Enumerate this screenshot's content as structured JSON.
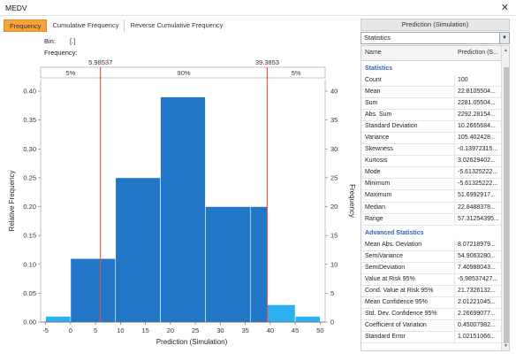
{
  "window": {
    "title": "MEDV",
    "close_icon": "close-icon"
  },
  "tabs": [
    "Frequency",
    "Cumulative Frequency",
    "Reverse Cumulative Frequency"
  ],
  "bin_label": "Bin:",
  "bin_value": "[.]",
  "frequency_label": "Frequency:",
  "markers": {
    "left_value": "5.98537",
    "right_value": "39.3853",
    "band_labels": [
      "5%",
      "90%",
      "5%"
    ],
    "line_color": "#e8402a"
  },
  "chart_data": {
    "type": "bar",
    "title": "",
    "xlabel": "Prediction (Simulation)",
    "ylabel": "Relative Frequency",
    "y2label": "Frequency",
    "xlim": [
      -6,
      51
    ],
    "ylim": [
      0,
      0.42
    ],
    "y2lim": [
      0,
      42
    ],
    "xticks": [
      -5,
      0,
      5,
      10,
      15,
      20,
      25,
      30,
      35,
      40,
      45,
      50
    ],
    "yticks": [
      0.0,
      0.05,
      0.1,
      0.15,
      0.2,
      0.25,
      0.3,
      0.35,
      0.4
    ],
    "ytick_labels": [
      "0.00",
      "0.05",
      "0.10",
      "0.15",
      "0.20",
      "0.25",
      "0.30",
      "0.35",
      "0.40"
    ],
    "y2ticks": [
      0,
      5,
      10,
      15,
      20,
      25,
      30,
      35,
      40
    ],
    "bins": [
      {
        "x0": -5,
        "x1": 0,
        "value": 0.01,
        "color": "#2cb0f0"
      },
      {
        "x0": 0,
        "x1": 5.98537,
        "value": 0.11,
        "color": "#2176c8"
      },
      {
        "x0": 5.98537,
        "x1": 9,
        "value": 0.11,
        "color": "#2176c8"
      },
      {
        "x0": 9,
        "x1": 18,
        "value": 0.25,
        "color": "#2176c8"
      },
      {
        "x0": 18,
        "x1": 27,
        "value": 0.39,
        "color": "#2176c8"
      },
      {
        "x0": 27,
        "x1": 36,
        "value": 0.2,
        "color": "#2176c8"
      },
      {
        "x0": 36,
        "x1": 39.3853,
        "value": 0.2,
        "color": "#2176c8"
      },
      {
        "x0": 39.3853,
        "x1": 45,
        "value": 0.03,
        "color": "#2cb0f0"
      },
      {
        "x0": 45,
        "x1": 50,
        "value": 0.01,
        "color": "#2cb0f0"
      }
    ],
    "marker_lines": [
      5.98537,
      39.3853
    ],
    "grid": false
  },
  "panel": {
    "header": "Prediction (Simulation)",
    "select_value": "Statistics",
    "columns": [
      "Name",
      "Prediction (S..."
    ],
    "rows": [
      {
        "section": "Statistics"
      },
      {
        "name": "Count",
        "value": "100"
      },
      {
        "name": "Mean",
        "value": "22.8105504..."
      },
      {
        "name": "Sum",
        "value": "2281.05504..."
      },
      {
        "name": "Abs. Sum",
        "value": "2292.28154..."
      },
      {
        "name": "Standard Deviation",
        "value": "10.2665684..."
      },
      {
        "name": "Variance",
        "value": "105.402428..."
      },
      {
        "name": "Skewness",
        "value": "-0.13972315..."
      },
      {
        "name": "Kurtosis",
        "value": "3.02629402..."
      },
      {
        "name": "Mode",
        "value": "-5.61325222..."
      },
      {
        "name": "Minimum",
        "value": "-5.61325222..."
      },
      {
        "name": "Maximum",
        "value": "51.6992917..."
      },
      {
        "name": "Median",
        "value": "22.8488378..."
      },
      {
        "name": "Range",
        "value": "57.31254395..."
      },
      {
        "section": "Advanced Statistics"
      },
      {
        "name": "Mean Abs. Deviation",
        "value": "8.07218979..."
      },
      {
        "name": "SemiVariance",
        "value": "54.9063280..."
      },
      {
        "name": "SemiDeviation",
        "value": "7.40988043..."
      },
      {
        "name": "Value at Risk 95%",
        "value": "-5.98537427..."
      },
      {
        "name": "Cond. Value at Risk 95%",
        "value": "21.7326132..."
      },
      {
        "name": "Mean Confidence 95%",
        "value": "2.01221045..."
      },
      {
        "name": "Std. Dev. Confidence 95%",
        "value": "2.26699077..."
      },
      {
        "name": "Coefficient of Variation",
        "value": "0.45007982..."
      },
      {
        "name": "Standard Error",
        "value": "1.02151066..."
      }
    ]
  }
}
